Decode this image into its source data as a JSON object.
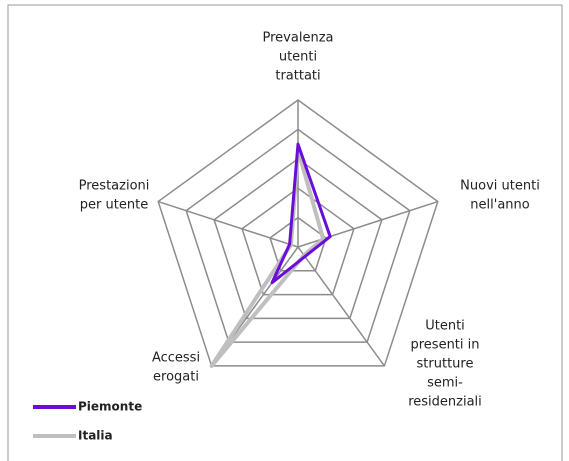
{
  "chart_data": {
    "type": "radar",
    "categories": [
      [
        "Prevalenza",
        "utenti",
        "trattati"
      ],
      [
        "Nuovi utenti",
        "nell'anno"
      ],
      [
        "Utenti",
        "presenti in",
        "strutture",
        "semi-",
        "residenziali"
      ],
      [
        "Accessi",
        "erogati"
      ],
      [
        "Prestazioni",
        "per utente"
      ]
    ],
    "series": [
      {
        "name": "Piemonte",
        "color": "#6a0dd8",
        "values": [
          3.5,
          1.15,
          0.4,
          1.5,
          0.3
        ]
      },
      {
        "name": "Italia",
        "color": "#bfbfbf",
        "values": [
          3.3,
          0.9,
          0.35,
          5,
          0.25
        ]
      }
    ],
    "ylim": [
      0,
      5
    ],
    "yticks": [
      1,
      2,
      3,
      4,
      5
    ],
    "grid": true,
    "legend": "bottom-left"
  }
}
